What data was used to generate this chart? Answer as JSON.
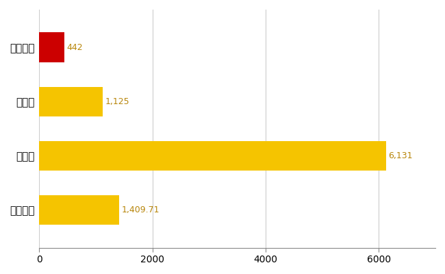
{
  "categories": [
    "奥出雲町",
    "県平均",
    "県最大",
    "全国平均"
  ],
  "values": [
    442,
    1125,
    6131,
    1409.71
  ],
  "bar_colors": [
    "#cc0000",
    "#f5c400",
    "#f5c400",
    "#f5c400"
  ],
  "value_labels": [
    "442",
    "1,125",
    "6,131",
    "1,409.71"
  ],
  "xlim": [
    0,
    7000
  ],
  "xticks": [
    0,
    2000,
    4000,
    6000
  ],
  "bar_height": 0.55,
  "label_color": "#b8860b",
  "value_label_fontsize": 9,
  "ytick_fontsize": 11,
  "xtick_fontsize": 10,
  "background_color": "#ffffff",
  "grid_color": "#cccccc",
  "grid_linewidth": 0.8
}
